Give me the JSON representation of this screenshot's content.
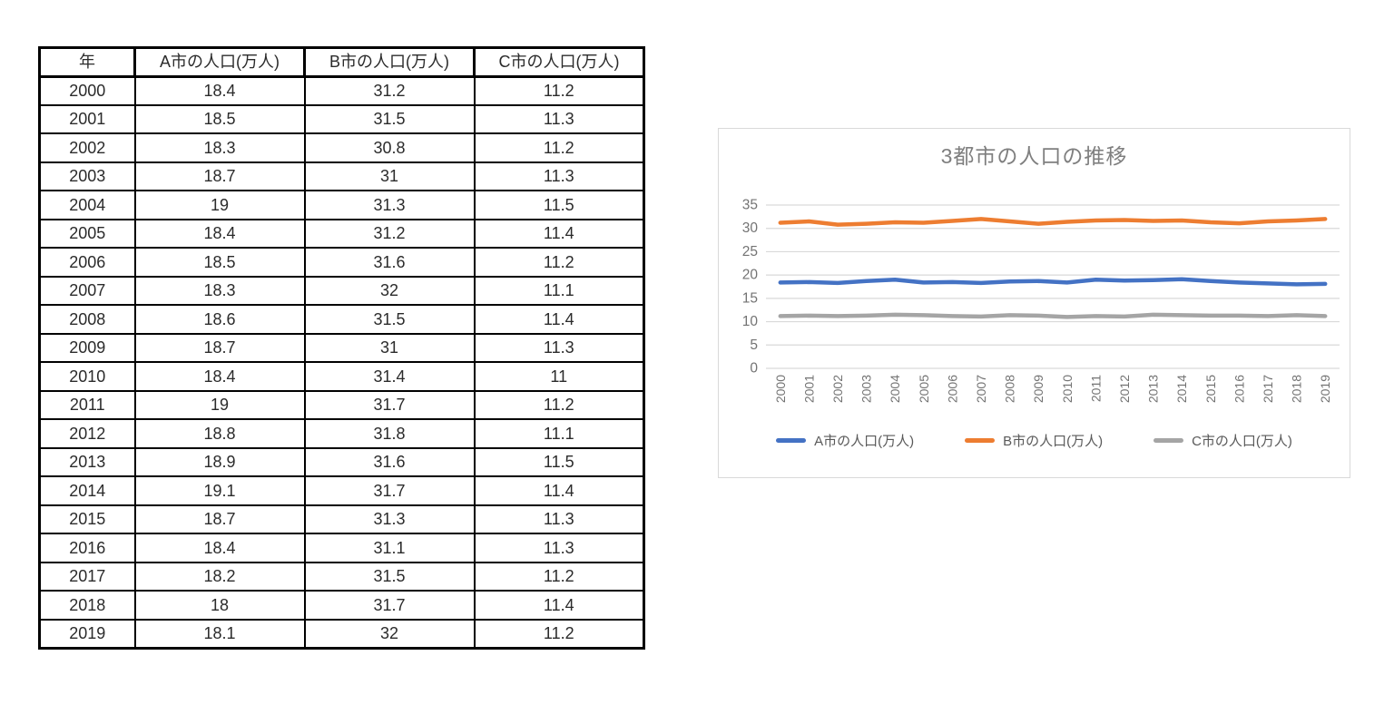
{
  "table": {
    "headers": [
      "年",
      "A市の人口(万人)",
      "B市の人口(万人)",
      "C市の人口(万人)"
    ],
    "rows": [
      [
        "2000",
        "18.4",
        "31.2",
        "11.2"
      ],
      [
        "2001",
        "18.5",
        "31.5",
        "11.3"
      ],
      [
        "2002",
        "18.3",
        "30.8",
        "11.2"
      ],
      [
        "2003",
        "18.7",
        "31",
        "11.3"
      ],
      [
        "2004",
        "19",
        "31.3",
        "11.5"
      ],
      [
        "2005",
        "18.4",
        "31.2",
        "11.4"
      ],
      [
        "2006",
        "18.5",
        "31.6",
        "11.2"
      ],
      [
        "2007",
        "18.3",
        "32",
        "11.1"
      ],
      [
        "2008",
        "18.6",
        "31.5",
        "11.4"
      ],
      [
        "2009",
        "18.7",
        "31",
        "11.3"
      ],
      [
        "2010",
        "18.4",
        "31.4",
        "11"
      ],
      [
        "2011",
        "19",
        "31.7",
        "11.2"
      ],
      [
        "2012",
        "18.8",
        "31.8",
        "11.1"
      ],
      [
        "2013",
        "18.9",
        "31.6",
        "11.5"
      ],
      [
        "2014",
        "19.1",
        "31.7",
        "11.4"
      ],
      [
        "2015",
        "18.7",
        "31.3",
        "11.3"
      ],
      [
        "2016",
        "18.4",
        "31.1",
        "11.3"
      ],
      [
        "2017",
        "18.2",
        "31.5",
        "11.2"
      ],
      [
        "2018",
        "18",
        "31.7",
        "11.4"
      ],
      [
        "2019",
        "18.1",
        "32",
        "11.2"
      ]
    ]
  },
  "chart_data": {
    "type": "line",
    "title": "3都市の人口の推移",
    "categories": [
      "2000",
      "2001",
      "2002",
      "2003",
      "2004",
      "2005",
      "2006",
      "2007",
      "2008",
      "2009",
      "2010",
      "2011",
      "2012",
      "2013",
      "2014",
      "2015",
      "2016",
      "2017",
      "2018",
      "2019"
    ],
    "series": [
      {
        "name": "A市の人口(万人)",
        "color": "#4472C4",
        "values": [
          18.4,
          18.5,
          18.3,
          18.7,
          19,
          18.4,
          18.5,
          18.3,
          18.6,
          18.7,
          18.4,
          19,
          18.8,
          18.9,
          19.1,
          18.7,
          18.4,
          18.2,
          18,
          18.1
        ]
      },
      {
        "name": "B市の人口(万人)",
        "color": "#ED7D31",
        "values": [
          31.2,
          31.5,
          30.8,
          31,
          31.3,
          31.2,
          31.6,
          32,
          31.5,
          31,
          31.4,
          31.7,
          31.8,
          31.6,
          31.7,
          31.3,
          31.1,
          31.5,
          31.7,
          32
        ]
      },
      {
        "name": "C市の人口(万人)",
        "color": "#A5A5A5",
        "values": [
          11.2,
          11.3,
          11.2,
          11.3,
          11.5,
          11.4,
          11.2,
          11.1,
          11.4,
          11.3,
          11,
          11.2,
          11.1,
          11.5,
          11.4,
          11.3,
          11.3,
          11.2,
          11.4,
          11.2
        ]
      }
    ],
    "xlabel": "",
    "ylabel": "",
    "ylim": [
      0,
      35
    ],
    "ytick_step": 5,
    "yticks": [
      0,
      5,
      10,
      15,
      20,
      25,
      30,
      35
    ],
    "grid": true,
    "legend_position": "bottom",
    "colors": {
      "axis_text": "#737373",
      "gridline": "#d9d9d9",
      "title_text": "#7f7f7f",
      "legend_text": "#595959",
      "chart_border": "#d9d9d9"
    }
  }
}
